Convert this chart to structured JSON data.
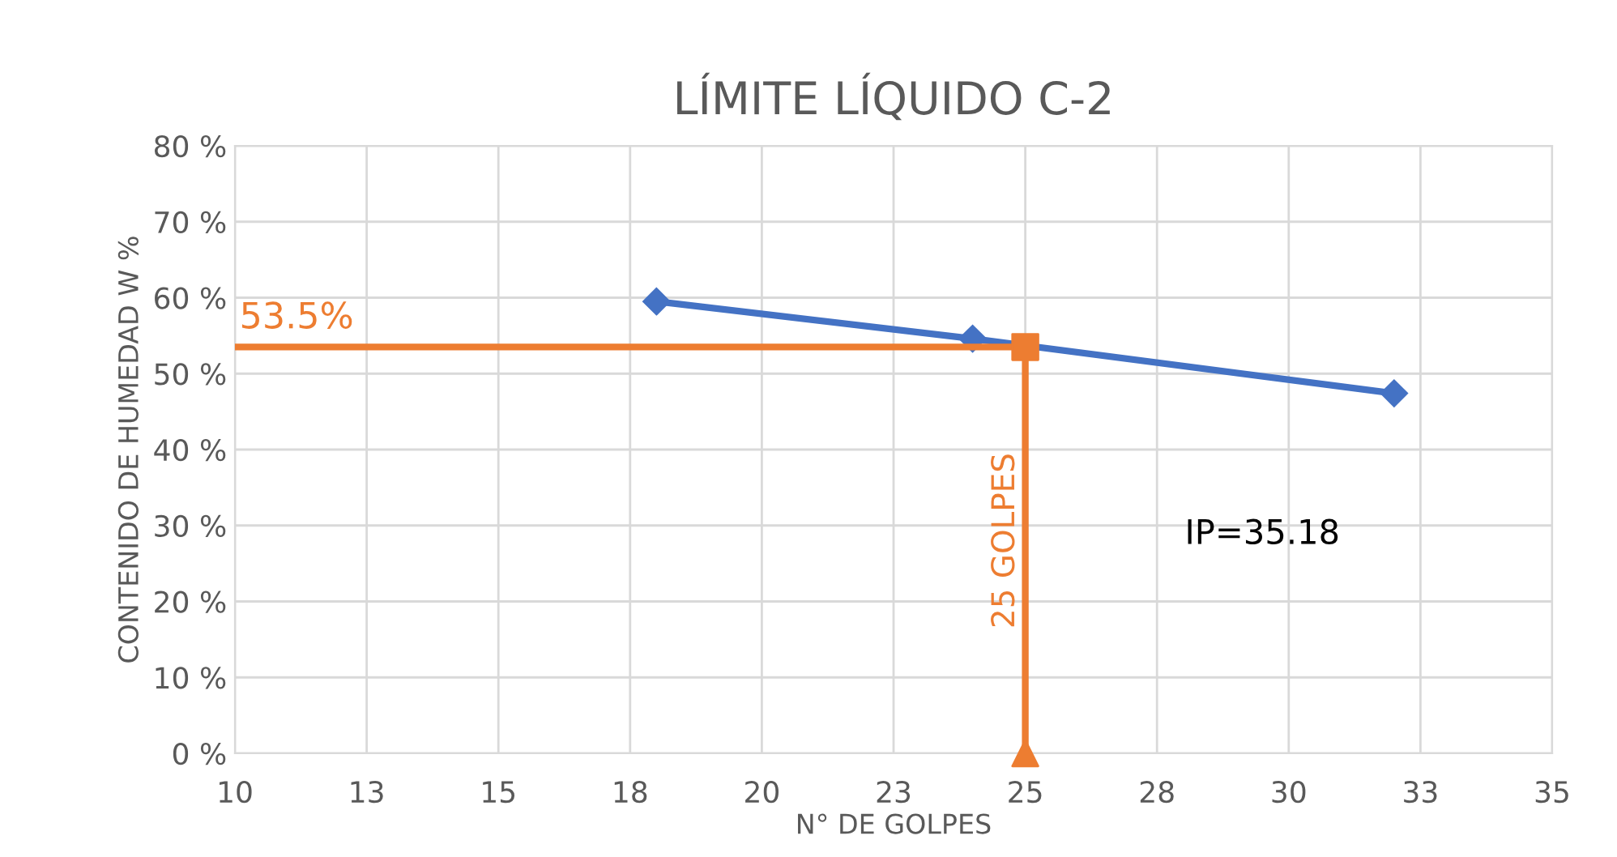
{
  "chart_data": {
    "type": "line",
    "title": "LÍMITE LÍQUIDO C-2",
    "xlabel": "N° DE GOLPES",
    "ylabel": "CONTENIDO DE HUMEDAD W %",
    "xlim": [
      10,
      35
    ],
    "xticks": [
      10,
      {
        "value": 12.5,
        "label": "13"
      },
      15,
      {
        "value": 17.5,
        "label": "18"
      },
      20,
      {
        "value": 22.5,
        "label": "23"
      },
      25,
      {
        "value": 27.5,
        "label": "28"
      },
      30,
      {
        "value": 32.5,
        "label": "33"
      },
      35
    ],
    "ylim": [
      0,
      80
    ],
    "yticks": [
      {
        "value": 0,
        "label": "0 %"
      },
      {
        "value": 10,
        "label": "10 %"
      },
      {
        "value": 20,
        "label": "20 %"
      },
      {
        "value": 30,
        "label": "30 %"
      },
      {
        "value": 40,
        "label": "40 %"
      },
      {
        "value": 50,
        "label": "50 %"
      },
      {
        "value": 60,
        "label": "60 %"
      },
      {
        "value": 70,
        "label": "70 %"
      },
      {
        "value": 80,
        "label": "80 %"
      }
    ],
    "grid": true,
    "series": [
      {
        "color": "#4472c4",
        "marker": "diamond",
        "x": [
          18.0,
          24.0,
          32.0
        ],
        "values": [
          59.5,
          54.6,
          47.4
        ]
      },
      {
        "color": "#ed7d31",
        "marker": "none",
        "x": [
          10,
          25,
          25
        ],
        "values": [
          53.5,
          53.5,
          0
        ]
      },
      {
        "type": "scatter",
        "color": "#ed7d31",
        "marker": "square",
        "x": [
          25
        ],
        "values": [
          53.5
        ]
      },
      {
        "type": "scatter",
        "color": "#ed7d31",
        "marker": "triangle",
        "x": [
          25
        ],
        "values": [
          0
        ]
      }
    ],
    "annotations": [
      {
        "text": "53.5%",
        "x": 10,
        "y": 53.5
      },
      "25 GOLPES",
      "IP=35.18"
    ]
  }
}
